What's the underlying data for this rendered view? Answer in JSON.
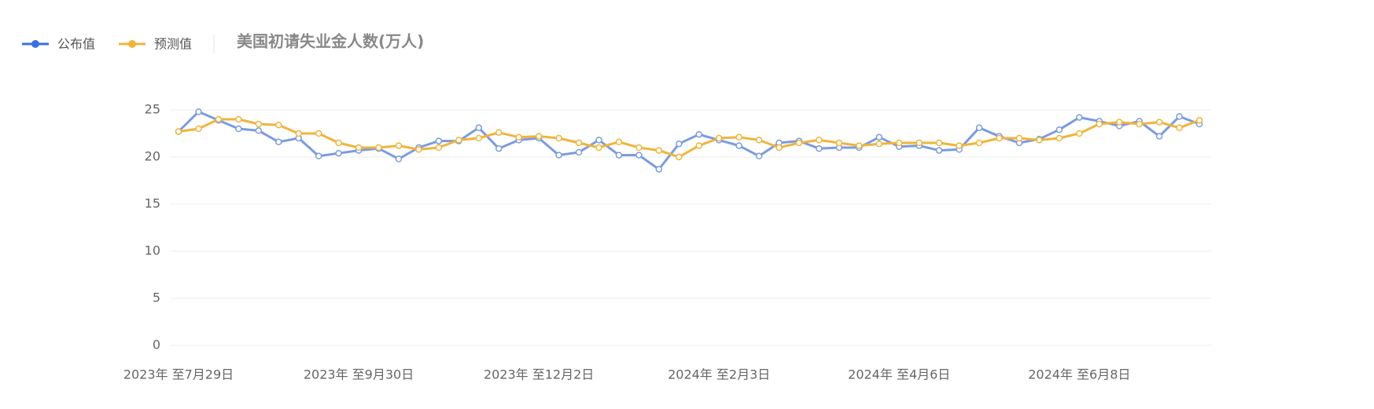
{
  "chart_data": {
    "type": "line",
    "title": "美国初请失业金人数(万人)",
    "categories": [
      "2023年 至7月29日",
      null,
      null,
      null,
      null,
      null,
      null,
      null,
      null,
      "2023年 至9月30日",
      null,
      null,
      null,
      null,
      null,
      null,
      null,
      null,
      "2023年 至12月2日",
      null,
      null,
      null,
      null,
      null,
      null,
      null,
      null,
      "2024年 至2月3日",
      null,
      null,
      null,
      null,
      null,
      null,
      null,
      null,
      "2024年 至4月6日",
      null,
      null,
      null,
      null,
      null,
      null,
      null,
      null,
      "2024年 至6月8日",
      null,
      null,
      null,
      null,
      null,
      null
    ],
    "series": [
      {
        "name": "公布值",
        "color": "#7b9be0",
        "legend_color": "#3b6fe0",
        "values": [
          22.7,
          24.8,
          23.9,
          23.0,
          22.8,
          21.6,
          22.0,
          20.1,
          20.4,
          20.7,
          20.9,
          19.8,
          21.0,
          21.7,
          21.7,
          23.1,
          20.9,
          21.8,
          22.0,
          20.2,
          20.5,
          21.8,
          20.2,
          20.2,
          18.7,
          21.4,
          22.4,
          21.8,
          21.2,
          20.1,
          21.5,
          21.7,
          20.9,
          21.0,
          21.0,
          22.1,
          21.1,
          21.2,
          20.7,
          20.8,
          23.1,
          22.2,
          21.5,
          21.9,
          22.9,
          24.2,
          23.8,
          23.3,
          23.8,
          22.2,
          24.3,
          23.5
        ]
      },
      {
        "name": "预测值",
        "color": "#f0b43c",
        "legend_color": "#f0b43c",
        "values": [
          22.7,
          23.0,
          24.0,
          24.0,
          23.5,
          23.4,
          22.5,
          22.5,
          21.5,
          21.0,
          21.0,
          21.2,
          20.8,
          21.0,
          21.8,
          22.0,
          22.6,
          22.1,
          22.2,
          22.0,
          21.5,
          21.0,
          21.6,
          21.0,
          20.7,
          20.0,
          21.2,
          22.0,
          22.1,
          21.8,
          21.0,
          21.5,
          21.8,
          21.5,
          21.2,
          21.4,
          21.5,
          21.5,
          21.5,
          21.2,
          21.5,
          22.0,
          22.0,
          21.8,
          22.0,
          22.5,
          23.5,
          23.7,
          23.5,
          23.7,
          23.1,
          23.9
        ]
      }
    ],
    "ylim": [
      0,
      25
    ],
    "yticks": [
      0,
      5,
      10,
      15,
      20,
      25
    ],
    "grid": true
  }
}
